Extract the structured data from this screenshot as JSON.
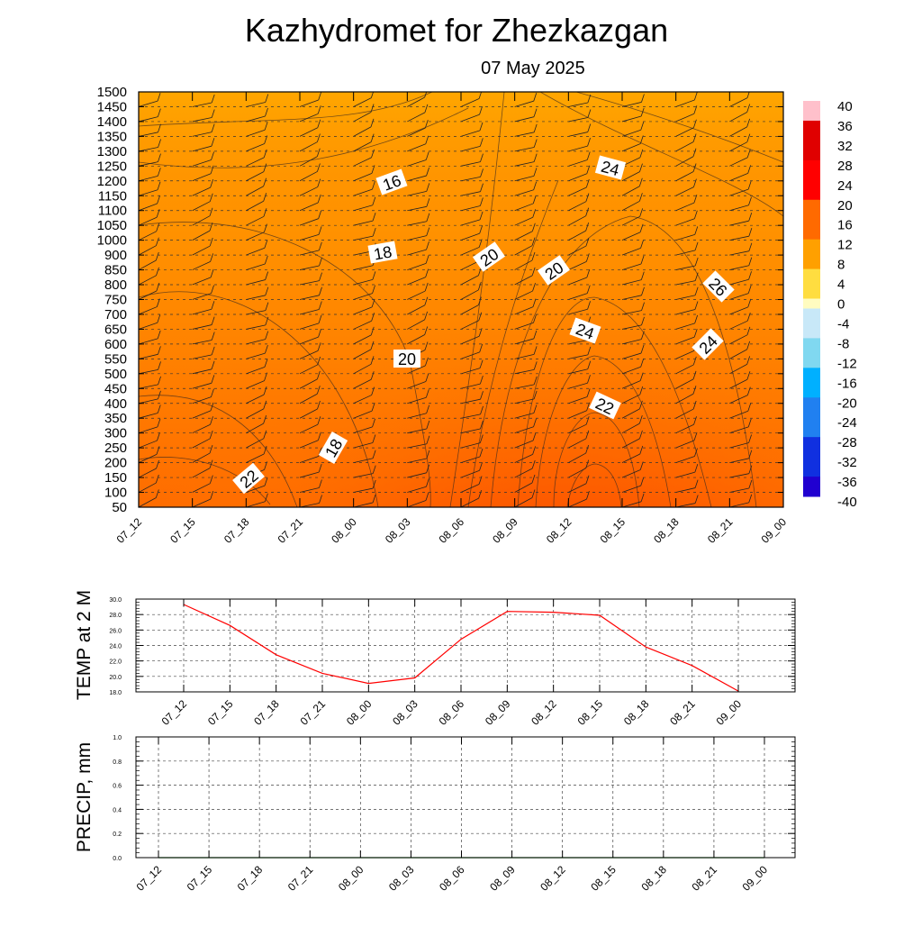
{
  "header": {
    "title": "Kazhydromet  for Zhezkazgan",
    "date": "07 May 2025"
  },
  "chart_data": [
    {
      "type": "heatmap",
      "y_tick_labels": [
        "1500",
        "1450",
        "1400",
        "1350",
        "1300",
        "1250",
        "1200",
        "1150",
        "1100",
        "1050",
        "1000",
        "900",
        "850",
        "800",
        "750",
        "700",
        "650",
        "600",
        "550",
        "500",
        "450",
        "400",
        "350",
        "300",
        "250",
        "200",
        "150",
        "100",
        "50"
      ],
      "x_tick_labels": [
        "07_12",
        "07_15",
        "07_18",
        "07_21",
        "08_00",
        "08_03",
        "08_06",
        "08_09",
        "08_12",
        "08_15",
        "08_18",
        "08_21",
        "09_00"
      ],
      "colorbar": {
        "labels": [
          "40",
          "36",
          "32",
          "28",
          "24",
          "20",
          "16",
          "12",
          "8",
          "4",
          "0",
          "-4",
          "-8",
          "-12",
          "-16",
          "-20",
          "-24",
          "-28",
          "-32",
          "-36",
          "-40"
        ],
        "range": [
          -40,
          40
        ]
      },
      "contour_labels": [
        "16",
        "18",
        "20",
        "18",
        "22",
        "20",
        "20",
        "24",
        "22",
        "24",
        "26",
        "24",
        "22"
      ],
      "grid": true,
      "overlay": "wind barbs"
    },
    {
      "type": "line",
      "ylabel": "TEMP at 2 M",
      "ylim": [
        18.0,
        30.0
      ],
      "y_tick_labels": [
        "30.0",
        "28.0",
        "26.0",
        "24.0",
        "22.0",
        "20.0",
        "18.0"
      ],
      "x_tick_labels": [
        "07_12",
        "07_15",
        "07_18",
        "07_21",
        "08_00",
        "08_03",
        "08_06",
        "08_09",
        "08_12",
        "08_15",
        "08_18",
        "08_21",
        "09_00"
      ],
      "values": [
        29.3,
        26.6,
        22.8,
        20.4,
        19.1,
        19.8,
        24.8,
        28.4,
        28.3,
        27.9,
        23.8,
        21.4,
        18.1
      ],
      "line_color": "#ff0000",
      "grid": true
    },
    {
      "type": "line",
      "ylabel": "PRECIP, mm",
      "ylim": [
        0.0,
        1.0
      ],
      "y_tick_labels": [
        "1.0",
        "0.8",
        "0.6",
        "0.4",
        "0.2",
        "0.0"
      ],
      "x_tick_labels": [
        "07_12",
        "07_15",
        "07_18",
        "07_21",
        "08_00",
        "08_03",
        "08_06",
        "08_09",
        "08_12",
        "08_15",
        "08_18",
        "08_21",
        "09_00"
      ],
      "values": [
        0,
        0,
        0,
        0,
        0,
        0,
        0,
        0,
        0,
        0,
        0,
        0,
        0
      ],
      "line_color": "#008000",
      "grid": true
    }
  ]
}
